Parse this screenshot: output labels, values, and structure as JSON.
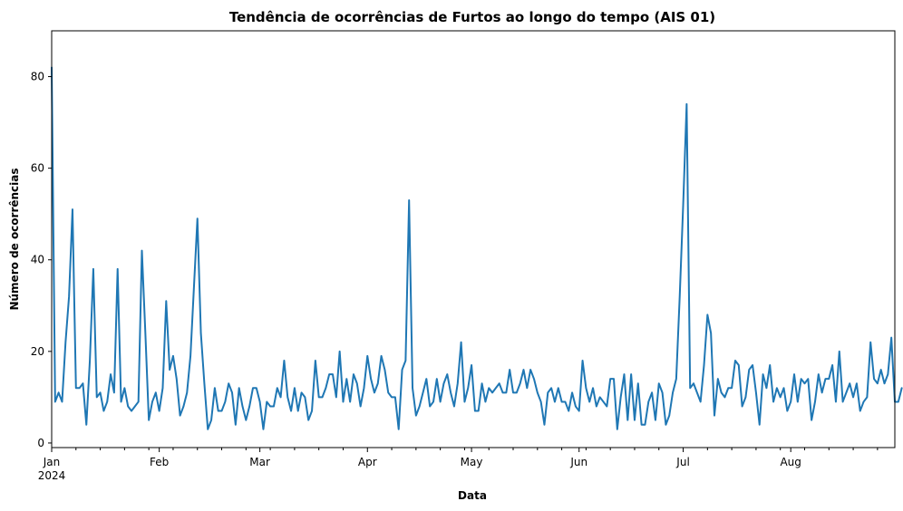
{
  "chart_data": {
    "type": "line",
    "title": "Tendência de ocorrências de Furtos ao longo do tempo (AIS 01)",
    "xlabel": "Data",
    "ylabel": "Número de ocorrências",
    "x_start": "2024-01-01",
    "x_end": "2024-08-31",
    "xlim": [
      "2024-01-01",
      "2024-08-31"
    ],
    "ylim": [
      -1,
      90
    ],
    "y_ticks": [
      0,
      20,
      40,
      60,
      80
    ],
    "x_ticks": [
      {
        "date": "2024-01-01",
        "label": "Jan",
        "sublabel": "2024"
      },
      {
        "date": "2024-02-01",
        "label": "Feb"
      },
      {
        "date": "2024-03-01",
        "label": "Mar"
      },
      {
        "date": "2024-04-01",
        "label": "Apr"
      },
      {
        "date": "2024-05-01",
        "label": "May"
      },
      {
        "date": "2024-06-01",
        "label": "Jun"
      },
      {
        "date": "2024-07-01",
        "label": "Jul"
      },
      {
        "date": "2024-08-01",
        "label": "Aug"
      }
    ],
    "grid": false,
    "legend": "none",
    "colors": {
      "line": "#1f77b4"
    },
    "series": [
      {
        "values": [
          82,
          9,
          11,
          9,
          22,
          32,
          51,
          12,
          12,
          13,
          4,
          18,
          38,
          10,
          11,
          7,
          9,
          15,
          11,
          38,
          9,
          12,
          8,
          7,
          8,
          9,
          42,
          24,
          5,
          9,
          11,
          7,
          12,
          31,
          16,
          19,
          14,
          6,
          8,
          11,
          19,
          34,
          49,
          24,
          13,
          3,
          5,
          12,
          7,
          7,
          9,
          13,
          11,
          4,
          12,
          8,
          5,
          8,
          12,
          12,
          9,
          3,
          9,
          8,
          8,
          12,
          10,
          18,
          10,
          7,
          12,
          7,
          11,
          10,
          5,
          7,
          18,
          10,
          10,
          12,
          15,
          15,
          10,
          20,
          9,
          14,
          9,
          15,
          13,
          8,
          12,
          19,
          14,
          11,
          13,
          19,
          16,
          11,
          10,
          10,
          3,
          16,
          18,
          53,
          12,
          6,
          8,
          11,
          14,
          8,
          9,
          14,
          9,
          13,
          15,
          11,
          8,
          13,
          22,
          9,
          12,
          17,
          7,
          7,
          13,
          9,
          12,
          11,
          12,
          13,
          11,
          11,
          16,
          11,
          11,
          13,
          16,
          12,
          16,
          14,
          11,
          9,
          4,
          11,
          12,
          9,
          12,
          9,
          9,
          7,
          11,
          8,
          7,
          18,
          12,
          9,
          12,
          8,
          10,
          9,
          8,
          14,
          14,
          3,
          10,
          15,
          5,
          15,
          5,
          13,
          4,
          4,
          9,
          11,
          5,
          13,
          11,
          4,
          6,
          11,
          14,
          32,
          52,
          74,
          12,
          13,
          11,
          9,
          17,
          28,
          24,
          6,
          14,
          11,
          10,
          12,
          12,
          18,
          17,
          8,
          10,
          16,
          17,
          11,
          4,
          15,
          12,
          17,
          9,
          12,
          10,
          12,
          7,
          9,
          15,
          9,
          14,
          13,
          14,
          5,
          9,
          15,
          11,
          14,
          14,
          17,
          9,
          20,
          9,
          11,
          13,
          10,
          13,
          7,
          9,
          10,
          22,
          14,
          13,
          16,
          13,
          15,
          23,
          9,
          9,
          12
        ]
      }
    ]
  }
}
